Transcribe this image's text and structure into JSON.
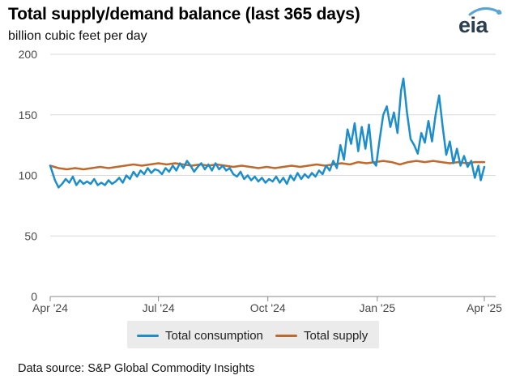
{
  "title": "Total supply/demand balance (last 365 days)",
  "subtitle": "billion cubic feet per day",
  "logo": {
    "text": "eia",
    "icon": "eia-logo-icon",
    "accent_color": "#5aa5d5"
  },
  "source": "Data source: S&P Global Commodity Insights",
  "legend": {
    "position": "bottom",
    "items": [
      {
        "label": "Total consumption",
        "color": "#1b8ecb"
      },
      {
        "label": "Total supply",
        "color": "#c0692a"
      }
    ]
  },
  "chart_data": {
    "type": "line",
    "title": "Total supply/demand balance (last 365 days)",
    "ylabel": "billion cubic feet per day",
    "ylim": [
      0,
      200
    ],
    "y_ticks": [
      0,
      50,
      100,
      150,
      200
    ],
    "xlim": [
      "2024-04-01",
      "2025-04-01"
    ],
    "x_ticks": [
      {
        "date": "2024-04-01",
        "label": "Apr '24"
      },
      {
        "date": "2024-07-01",
        "label": "Jul '24"
      },
      {
        "date": "2024-10-01",
        "label": "Oct '24"
      },
      {
        "date": "2025-01-01",
        "label": "Jan '25"
      },
      {
        "date": "2025-04-01",
        "label": "Apr '25"
      }
    ],
    "grid": true,
    "series": [
      {
        "name": "Total consumption",
        "color": "#1b8ecb",
        "points": [
          [
            "2024-04-01",
            108
          ],
          [
            "2024-04-05",
            96
          ],
          [
            "2024-04-08",
            90
          ],
          [
            "2024-04-11",
            93
          ],
          [
            "2024-04-14",
            97
          ],
          [
            "2024-04-17",
            94
          ],
          [
            "2024-04-20",
            99
          ],
          [
            "2024-04-23",
            92
          ],
          [
            "2024-04-26",
            96
          ],
          [
            "2024-04-29",
            93
          ],
          [
            "2024-05-02",
            95
          ],
          [
            "2024-05-05",
            93
          ],
          [
            "2024-05-08",
            97
          ],
          [
            "2024-05-11",
            92
          ],
          [
            "2024-05-14",
            94
          ],
          [
            "2024-05-17",
            92
          ],
          [
            "2024-05-20",
            96
          ],
          [
            "2024-05-23",
            93
          ],
          [
            "2024-05-26",
            95
          ],
          [
            "2024-05-29",
            98
          ],
          [
            "2024-06-01",
            94
          ],
          [
            "2024-06-04",
            100
          ],
          [
            "2024-06-07",
            97
          ],
          [
            "2024-06-10",
            103
          ],
          [
            "2024-06-13",
            99
          ],
          [
            "2024-06-16",
            104
          ],
          [
            "2024-06-19",
            101
          ],
          [
            "2024-06-22",
            106
          ],
          [
            "2024-06-25",
            102
          ],
          [
            "2024-06-28",
            105
          ],
          [
            "2024-07-01",
            104
          ],
          [
            "2024-07-04",
            101
          ],
          [
            "2024-07-07",
            106
          ],
          [
            "2024-07-10",
            103
          ],
          [
            "2024-07-13",
            108
          ],
          [
            "2024-07-16",
            104
          ],
          [
            "2024-07-19",
            110
          ],
          [
            "2024-07-22",
            106
          ],
          [
            "2024-07-25",
            112
          ],
          [
            "2024-07-28",
            108
          ],
          [
            "2024-07-31",
            103
          ],
          [
            "2024-08-03",
            107
          ],
          [
            "2024-08-06",
            110
          ],
          [
            "2024-08-09",
            105
          ],
          [
            "2024-08-12",
            109
          ],
          [
            "2024-08-15",
            104
          ],
          [
            "2024-08-18",
            110
          ],
          [
            "2024-08-21",
            105
          ],
          [
            "2024-08-24",
            108
          ],
          [
            "2024-08-27",
            104
          ],
          [
            "2024-08-30",
            106
          ],
          [
            "2024-09-02",
            101
          ],
          [
            "2024-09-05",
            99
          ],
          [
            "2024-09-08",
            103
          ],
          [
            "2024-09-11",
            97
          ],
          [
            "2024-09-14",
            100
          ],
          [
            "2024-09-17",
            96
          ],
          [
            "2024-09-20",
            99
          ],
          [
            "2024-09-23",
            95
          ],
          [
            "2024-09-26",
            98
          ],
          [
            "2024-09-29",
            94
          ],
          [
            "2024-10-02",
            97
          ],
          [
            "2024-10-05",
            95
          ],
          [
            "2024-10-08",
            99
          ],
          [
            "2024-10-11",
            94
          ],
          [
            "2024-10-14",
            98
          ],
          [
            "2024-10-17",
            93
          ],
          [
            "2024-10-20",
            100
          ],
          [
            "2024-10-23",
            96
          ],
          [
            "2024-10-26",
            102
          ],
          [
            "2024-10-29",
            97
          ],
          [
            "2024-11-01",
            101
          ],
          [
            "2024-11-04",
            98
          ],
          [
            "2024-11-07",
            102
          ],
          [
            "2024-11-10",
            99
          ],
          [
            "2024-11-13",
            104
          ],
          [
            "2024-11-16",
            101
          ],
          [
            "2024-11-19",
            108
          ],
          [
            "2024-11-22",
            104
          ],
          [
            "2024-11-25",
            112
          ],
          [
            "2024-11-28",
            106
          ],
          [
            "2024-12-01",
            125
          ],
          [
            "2024-12-04",
            113
          ],
          [
            "2024-12-07",
            138
          ],
          [
            "2024-12-10",
            126
          ],
          [
            "2024-12-13",
            143
          ],
          [
            "2024-12-16",
            120
          ],
          [
            "2024-12-19",
            140
          ],
          [
            "2024-12-22",
            122
          ],
          [
            "2024-12-25",
            142
          ],
          [
            "2024-12-28",
            112
          ],
          [
            "2024-12-31",
            108
          ],
          [
            "2025-01-03",
            130
          ],
          [
            "2025-01-06",
            150
          ],
          [
            "2025-01-09",
            157
          ],
          [
            "2025-01-12",
            140
          ],
          [
            "2025-01-15",
            152
          ],
          [
            "2025-01-18",
            135
          ],
          [
            "2025-01-21",
            170
          ],
          [
            "2025-01-23",
            180
          ],
          [
            "2025-01-26",
            152
          ],
          [
            "2025-01-29",
            130
          ],
          [
            "2025-02-01",
            125
          ],
          [
            "2025-02-04",
            118
          ],
          [
            "2025-02-07",
            135
          ],
          [
            "2025-02-10",
            127
          ],
          [
            "2025-02-13",
            145
          ],
          [
            "2025-02-16",
            128
          ],
          [
            "2025-02-19",
            150
          ],
          [
            "2025-02-22",
            166
          ],
          [
            "2025-02-25",
            140
          ],
          [
            "2025-02-28",
            117
          ],
          [
            "2025-03-03",
            128
          ],
          [
            "2025-03-06",
            110
          ],
          [
            "2025-03-09",
            122
          ],
          [
            "2025-03-12",
            108
          ],
          [
            "2025-03-15",
            116
          ],
          [
            "2025-03-18",
            107
          ],
          [
            "2025-03-21",
            112
          ],
          [
            "2025-03-24",
            98
          ],
          [
            "2025-03-27",
            108
          ],
          [
            "2025-03-29",
            96
          ],
          [
            "2025-04-01",
            107
          ]
        ]
      },
      {
        "name": "Total supply",
        "color": "#c0692a",
        "points": [
          [
            "2024-04-01",
            108
          ],
          [
            "2024-04-08",
            106
          ],
          [
            "2024-04-15",
            105
          ],
          [
            "2024-04-22",
            106
          ],
          [
            "2024-04-29",
            105
          ],
          [
            "2024-05-06",
            106
          ],
          [
            "2024-05-13",
            107
          ],
          [
            "2024-05-20",
            106
          ],
          [
            "2024-05-27",
            107
          ],
          [
            "2024-06-03",
            108
          ],
          [
            "2024-06-10",
            109
          ],
          [
            "2024-06-17",
            108
          ],
          [
            "2024-06-24",
            109
          ],
          [
            "2024-07-01",
            110
          ],
          [
            "2024-07-08",
            109
          ],
          [
            "2024-07-15",
            110
          ],
          [
            "2024-07-22",
            109
          ],
          [
            "2024-07-29",
            108
          ],
          [
            "2024-08-05",
            109
          ],
          [
            "2024-08-12",
            108
          ],
          [
            "2024-08-19",
            109
          ],
          [
            "2024-08-26",
            108
          ],
          [
            "2024-09-02",
            107
          ],
          [
            "2024-09-09",
            108
          ],
          [
            "2024-09-16",
            107
          ],
          [
            "2024-09-23",
            106
          ],
          [
            "2024-09-30",
            107
          ],
          [
            "2024-10-07",
            106
          ],
          [
            "2024-10-14",
            107
          ],
          [
            "2024-10-21",
            108
          ],
          [
            "2024-10-28",
            107
          ],
          [
            "2024-11-04",
            108
          ],
          [
            "2024-11-11",
            109
          ],
          [
            "2024-11-18",
            108
          ],
          [
            "2024-11-25",
            109
          ],
          [
            "2024-12-02",
            110
          ],
          [
            "2024-12-09",
            109
          ],
          [
            "2024-12-16",
            111
          ],
          [
            "2024-12-23",
            110
          ],
          [
            "2024-12-30",
            111
          ],
          [
            "2025-01-06",
            112
          ],
          [
            "2025-01-13",
            111
          ],
          [
            "2025-01-20",
            109
          ],
          [
            "2025-01-27",
            111
          ],
          [
            "2025-02-03",
            112
          ],
          [
            "2025-02-10",
            111
          ],
          [
            "2025-02-17",
            112
          ],
          [
            "2025-02-24",
            111
          ],
          [
            "2025-03-03",
            110
          ],
          [
            "2025-03-10",
            111
          ],
          [
            "2025-03-17",
            110
          ],
          [
            "2025-03-24",
            111
          ],
          [
            "2025-04-01",
            111
          ]
        ]
      }
    ]
  }
}
